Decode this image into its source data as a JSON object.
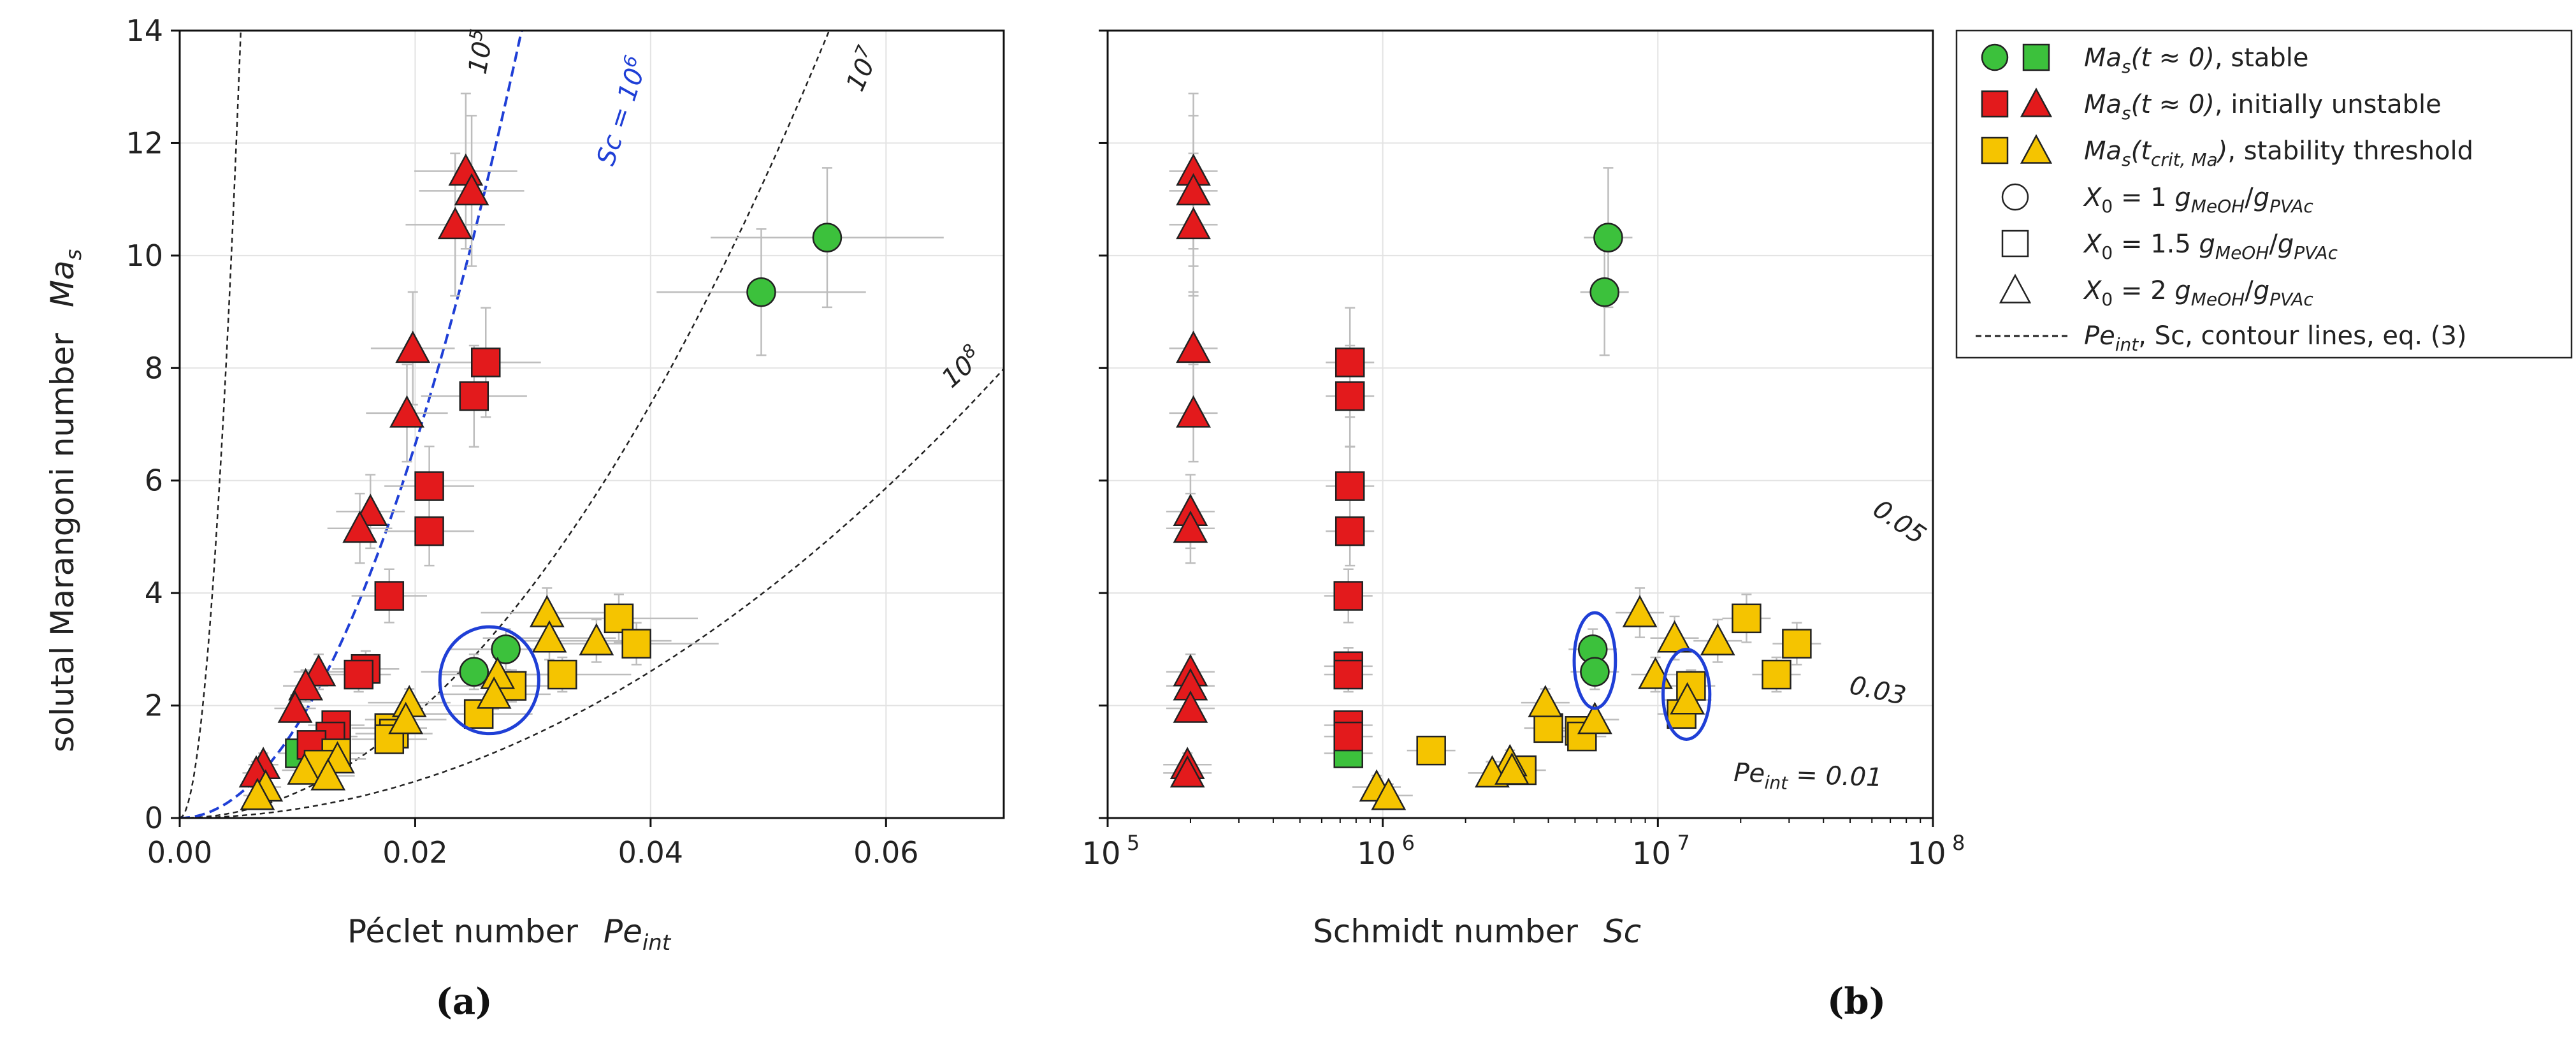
{
  "chart_data": [
    {
      "panel": "a",
      "panel_label": "(a)",
      "type": "scatter",
      "xlabel": "Péclet number",
      "xlabel_symbol": "Pe",
      "xlabel_symbol_sub": "int",
      "ylabel": "solutal Marangoni number",
      "ylabel_symbol": "Ma",
      "ylabel_symbol_sub": "s",
      "xlim": [
        0,
        0.07
      ],
      "ylim": [
        0,
        14
      ],
      "xticks": [
        0.0,
        0.02,
        0.04,
        0.06
      ],
      "xtick_labels": [
        "0.00",
        "0.02",
        "0.04",
        "0.06"
      ],
      "yticks": [
        0,
        2,
        4,
        6,
        8,
        10,
        12,
        14
      ],
      "ytick_labels": [
        "0",
        "2",
        "4",
        "6",
        "8",
        "10",
        "12",
        "14"
      ],
      "grid": true,
      "contours": [
        {
          "k": 520000,
          "label": "10",
          "label_exp": "5"
        },
        {
          "k": 4600,
          "label": "10",
          "label_exp": "7"
        },
        {
          "k": 1630,
          "label": "10",
          "label_exp": "8"
        }
      ],
      "sc_curve": {
        "k": 16600,
        "label": "Sc = 10",
        "label_exp": "6",
        "color": "#1f3fd6"
      },
      "series": [
        {
          "name": "stable",
          "marker": "circle",
          "color": "#3cc13c",
          "points": [
            [
              0.0494,
              9.35
            ],
            [
              0.055,
              10.32
            ],
            [
              0.025,
              2.6
            ],
            [
              0.0277,
              3.0
            ]
          ]
        },
        {
          "name": "stable",
          "marker": "square",
          "color": "#3cc13c",
          "points": [
            [
              0.0102,
              1.15
            ]
          ]
        },
        {
          "name": "initially unstable",
          "marker": "square",
          "color": "#e31a1c",
          "points": [
            [
              0.026,
              8.1
            ],
            [
              0.025,
              7.5
            ],
            [
              0.0212,
              5.9
            ],
            [
              0.0212,
              5.1
            ],
            [
              0.0178,
              3.95
            ],
            [
              0.0158,
              2.65
            ],
            [
              0.0152,
              2.55
            ],
            [
              0.0133,
              1.65
            ],
            [
              0.0128,
              1.45
            ],
            [
              0.0112,
              1.3
            ]
          ]
        },
        {
          "name": "initially unstable",
          "marker": "triangle",
          "color": "#e31a1c",
          "points": [
            [
              0.0243,
              11.5
            ],
            [
              0.0248,
              11.15
            ],
            [
              0.0234,
              10.55
            ],
            [
              0.0198,
              8.35
            ],
            [
              0.0193,
              7.2
            ],
            [
              0.0162,
              5.45
            ],
            [
              0.0153,
              5.15
            ],
            [
              0.0118,
              2.6
            ],
            [
              0.0107,
              2.35
            ],
            [
              0.0098,
              1.95
            ],
            [
              0.0071,
              0.95
            ],
            [
              0.0065,
              0.8
            ]
          ]
        },
        {
          "name": "stability threshold",
          "marker": "square",
          "color": "#f5c400",
          "points": [
            [
              0.0373,
              3.55
            ],
            [
              0.0388,
              3.1
            ],
            [
              0.0325,
              2.55
            ],
            [
              0.0282,
              2.35
            ],
            [
              0.0254,
              1.85
            ],
            [
              0.0178,
              1.6
            ],
            [
              0.0182,
              1.5
            ],
            [
              0.0178,
              1.4
            ],
            [
              0.0133,
              1.15
            ],
            [
              0.0118,
              0.95
            ]
          ]
        },
        {
          "name": "stability threshold",
          "marker": "triangle",
          "color": "#f5c400",
          "points": [
            [
              0.0312,
              3.65
            ],
            [
              0.0314,
              3.2
            ],
            [
              0.0354,
              3.15
            ],
            [
              0.027,
              2.55
            ],
            [
              0.0267,
              2.2
            ],
            [
              0.0195,
              2.05
            ],
            [
              0.0192,
              1.75
            ],
            [
              0.0134,
              1.05
            ],
            [
              0.0106,
              0.85
            ],
            [
              0.0126,
              0.75
            ],
            [
              0.0073,
              0.55
            ],
            [
              0.0066,
              0.4
            ]
          ]
        }
      ],
      "ellipse": {
        "cx": 0.0263,
        "cy": 2.45,
        "rx": 0.0042,
        "ry": 0.95,
        "color": "#1f3fd6"
      }
    },
    {
      "panel": "b",
      "panel_label": "(b)",
      "type": "scatter",
      "xscale": "log",
      "xlabel": "Schmidt number",
      "xlabel_symbol": "Sc",
      "xlim": [
        100000,
        100000000
      ],
      "ylim": [
        0,
        14
      ],
      "xticks": [
        100000,
        1000000,
        10000000,
        100000000
      ],
      "xtick_labels": [
        "10",
        "10",
        "10",
        "10"
      ],
      "xtick_exps": [
        "5",
        "6",
        "7",
        "8"
      ],
      "yticks": [
        0,
        2,
        4,
        6,
        8,
        10,
        12,
        14
      ],
      "grid": true,
      "contours": [
        {
          "pe": 0.05,
          "label": "0.05"
        },
        {
          "pe": 0.03,
          "label": "0.03"
        },
        {
          "pe": 0.01,
          "label": "Pe",
          "label_sub": "int",
          "label_rest": " = 0.01"
        }
      ],
      "series": [
        {
          "name": "stable",
          "marker": "circle",
          "color": "#3cc13c",
          "points": [
            [
              6600000,
              10.32
            ],
            [
              6400000,
              9.35
            ],
            [
              5800000,
              3.0
            ],
            [
              5900000,
              2.6
            ]
          ]
        },
        {
          "name": "stable",
          "marker": "square",
          "color": "#3cc13c",
          "points": [
            [
              750000,
              1.15
            ]
          ]
        },
        {
          "name": "initially unstable",
          "marker": "square",
          "color": "#e31a1c",
          "points": [
            [
              760000,
              8.1
            ],
            [
              760000,
              7.5
            ],
            [
              760000,
              5.9
            ],
            [
              760000,
              5.1
            ],
            [
              750000,
              3.95
            ],
            [
              750000,
              2.7
            ],
            [
              750000,
              2.55
            ],
            [
              750000,
              1.65
            ],
            [
              750000,
              1.45
            ]
          ]
        },
        {
          "name": "initially unstable",
          "marker": "triangle",
          "color": "#e31a1c",
          "points": [
            [
              205000,
              11.5
            ],
            [
              205000,
              11.15
            ],
            [
              205000,
              10.55
            ],
            [
              205000,
              8.35
            ],
            [
              205000,
              7.2
            ],
            [
              200000,
              5.45
            ],
            [
              200000,
              5.15
            ],
            [
              200000,
              2.6
            ],
            [
              200000,
              2.35
            ],
            [
              200000,
              1.95
            ],
            [
              195000,
              0.95
            ],
            [
              195000,
              0.8
            ]
          ]
        },
        {
          "name": "stability threshold",
          "marker": "square",
          "color": "#f5c400",
          "points": [
            [
              21000000,
              3.55
            ],
            [
              32000000,
              3.1
            ],
            [
              27000000,
              2.55
            ],
            [
              13200000,
              2.35
            ],
            [
              12200000,
              1.85
            ],
            [
              5200000,
              1.55
            ],
            [
              5300000,
              1.45
            ],
            [
              4000000,
              1.6
            ],
            [
              1500000,
              1.2
            ],
            [
              3200000,
              0.85
            ]
          ]
        },
        {
          "name": "stability threshold",
          "marker": "triangle",
          "color": "#f5c400",
          "points": [
            [
              8600000,
              3.65
            ],
            [
              11500000,
              3.2
            ],
            [
              16500000,
              3.15
            ],
            [
              9800000,
              2.55
            ],
            [
              12800000,
              2.1
            ],
            [
              3900000,
              2.05
            ],
            [
              5900000,
              1.75
            ],
            [
              2900000,
              1.0
            ],
            [
              2500000,
              0.8
            ],
            [
              2950000,
              0.85
            ],
            [
              950000,
              0.55
            ],
            [
              1050000,
              0.4
            ]
          ]
        }
      ],
      "ellipses": [
        {
          "cx": 5900000,
          "cy": 2.8,
          "rx_dec": 0.075,
          "ry": 0.85,
          "color": "#1f3fd6"
        },
        {
          "cx": 12700000,
          "cy": 2.2,
          "rx_dec": 0.085,
          "ry": 0.8,
          "color": "#1f3fd6"
        }
      ]
    }
  ],
  "legend": {
    "entries": [
      {
        "markers": [
          "circle",
          "square"
        ],
        "colors": [
          "#3cc13c",
          "#3cc13c"
        ],
        "sym": "Ma",
        "sub": "s",
        "arg": "(t ≈ 0)",
        "text": ", stable"
      },
      {
        "markers": [
          "square",
          "triangle"
        ],
        "colors": [
          "#e31a1c",
          "#e31a1c"
        ],
        "sym": "Ma",
        "sub": "s",
        "arg": "(t ≈ 0)",
        "text": ", initially unstable"
      },
      {
        "markers": [
          "square",
          "triangle"
        ],
        "colors": [
          "#f5c400",
          "#f5c400"
        ],
        "sym": "Ma",
        "sub": "s",
        "arg": "(t",
        "arg_sub": "crit, Ma",
        "arg_end": ")",
        "text": ", stability threshold"
      },
      {
        "markers": [
          "circle"
        ],
        "colors": [
          "none"
        ],
        "x0": "1",
        "num": "MeOH",
        "den": "PVAc"
      },
      {
        "markers": [
          "square"
        ],
        "colors": [
          "none"
        ],
        "x0": "1.5",
        "num": "MeOH",
        "den": "PVAc"
      },
      {
        "markers": [
          "triangle"
        ],
        "colors": [
          "none"
        ],
        "x0": "2",
        "num": "MeOH",
        "den": "PVAc"
      },
      {
        "markers": [
          "dashed"
        ],
        "colors": [
          "none"
        ],
        "text": "Pe",
        "sub": "int",
        "rest": ", Sc, contour lines, eq. (3)"
      }
    ]
  }
}
